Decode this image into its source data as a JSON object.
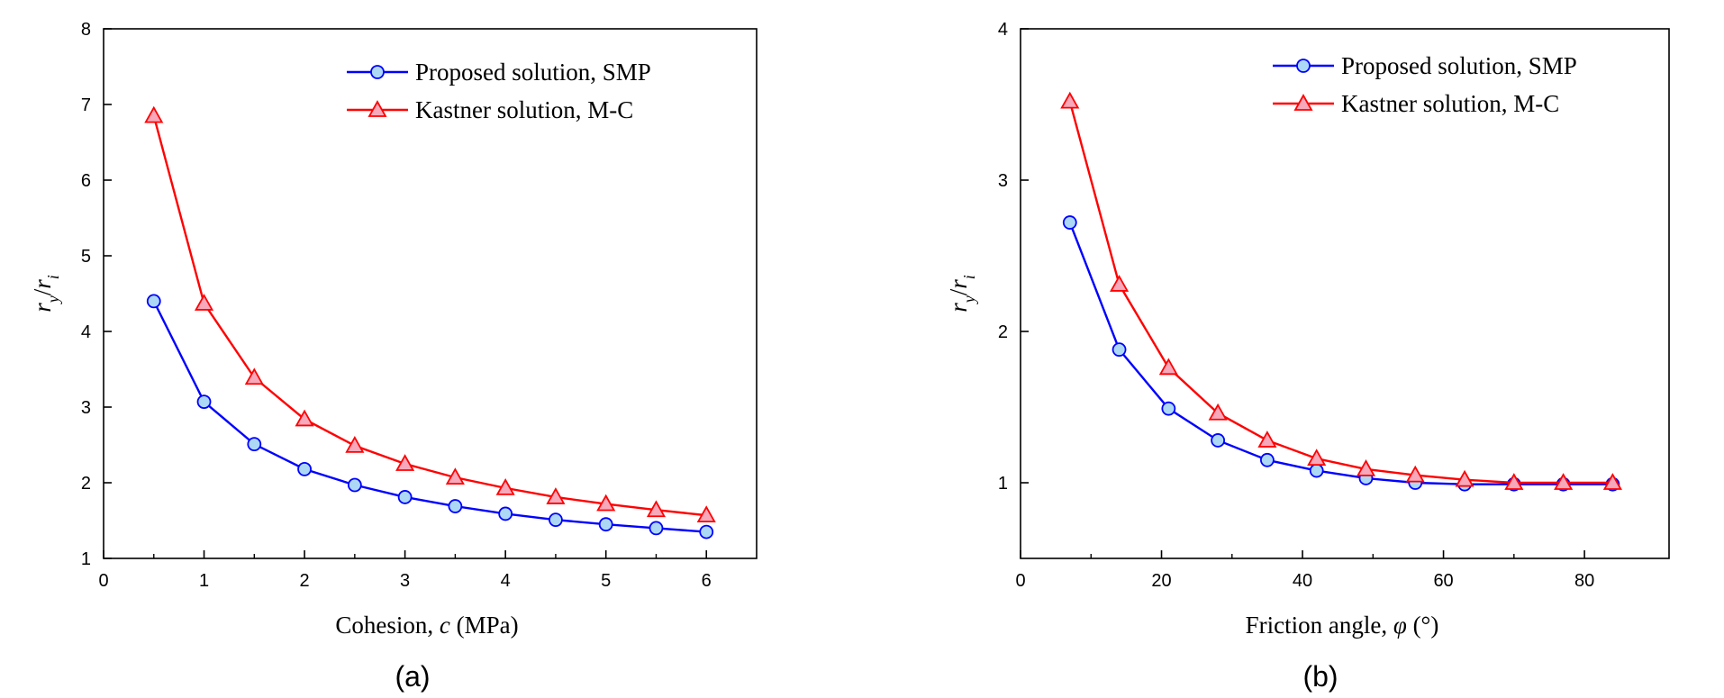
{
  "chart_data": [
    {
      "type": "line",
      "panel_label": "(a)",
      "xlabel_parts": [
        "Cohesion, ",
        "c",
        " (MPa)"
      ],
      "ylabel_parts": [
        "r",
        "y",
        "/",
        "r",
        "i"
      ],
      "xlim": [
        0,
        6.5
      ],
      "ylim": [
        1,
        8
      ],
      "xticks": [
        0,
        1,
        2,
        3,
        4,
        5,
        6
      ],
      "yticks": [
        1,
        2,
        3,
        4,
        5,
        6,
        7,
        8
      ],
      "legend_position": "top-right",
      "grid": false,
      "x": [
        0.5,
        1.0,
        1.5,
        2.0,
        2.5,
        3.0,
        3.5,
        4.0,
        4.5,
        5.0,
        5.5,
        6.0
      ],
      "series": [
        {
          "name": "Proposed solution, SMP",
          "color": "#0000ff",
          "marker": "circle",
          "marker_fill": "#add8f5",
          "values": [
            4.4,
            3.07,
            2.51,
            2.18,
            1.97,
            1.81,
            1.69,
            1.59,
            1.51,
            1.45,
            1.4,
            1.35
          ]
        },
        {
          "name": "Kastner solution, M-C",
          "color": "#ff0000",
          "marker": "triangle",
          "marker_fill": "#f7a8ba",
          "values": [
            6.85,
            4.37,
            3.39,
            2.84,
            2.49,
            2.25,
            2.07,
            1.93,
            1.81,
            1.72,
            1.64,
            1.57
          ]
        }
      ]
    },
    {
      "type": "line",
      "panel_label": "(b)",
      "xlabel_parts": [
        "Friction angle, ",
        "φ",
        " (°)"
      ],
      "ylabel_parts": [
        "r",
        "y",
        "/",
        "r",
        "i"
      ],
      "xlim": [
        0,
        92
      ],
      "ylim": [
        0.5,
        4
      ],
      "xticks": [
        0,
        20,
        40,
        60,
        80
      ],
      "yticks": [
        1,
        2,
        3,
        4
      ],
      "legend_position": "top-right",
      "grid": false,
      "x": [
        7,
        14,
        21,
        28,
        35,
        42,
        49,
        56,
        63,
        70,
        77,
        84
      ],
      "series": [
        {
          "name": "Proposed solution, SMP",
          "color": "#0000ff",
          "marker": "circle",
          "marker_fill": "#add8f5",
          "values": [
            2.72,
            1.88,
            1.49,
            1.28,
            1.15,
            1.08,
            1.03,
            1.0,
            0.99,
            0.99,
            0.99,
            0.99
          ]
        },
        {
          "name": "Kastner solution, M-C",
          "color": "#ff0000",
          "marker": "triangle",
          "marker_fill": "#f7a8ba",
          "values": [
            3.52,
            2.31,
            1.76,
            1.46,
            1.28,
            1.16,
            1.09,
            1.05,
            1.02,
            1.0,
            1.0,
            1.0
          ]
        }
      ]
    }
  ]
}
